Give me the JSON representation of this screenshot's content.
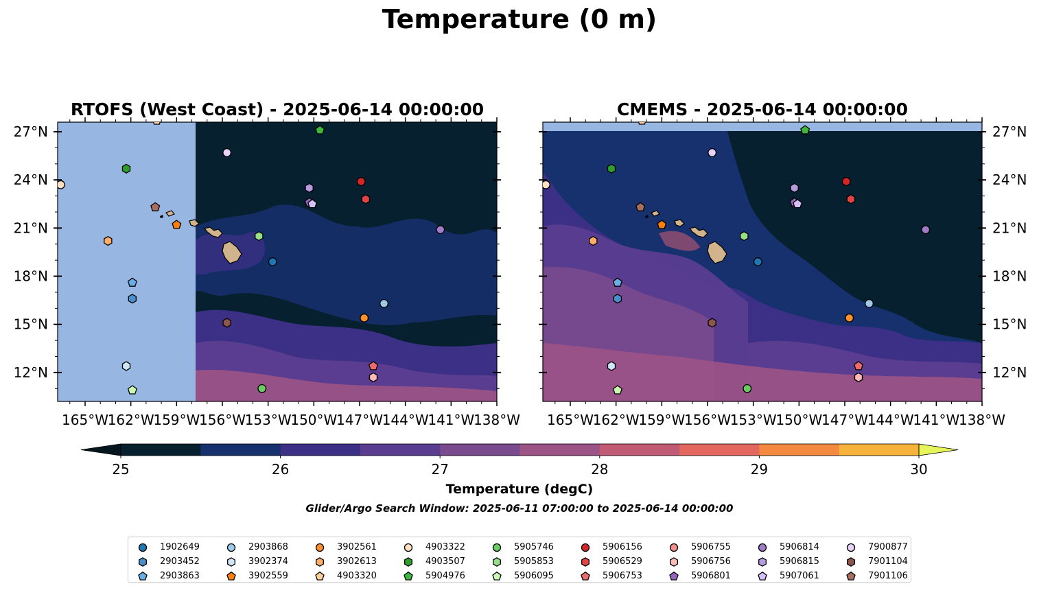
{
  "suptitle": "Temperature (0 m)",
  "panels": [
    {
      "title": "RTOFS (West Coast) - 2025-06-14 00:00:00",
      "model": "RTOFS"
    },
    {
      "title": "CMEMS - 2025-06-14 00:00:00",
      "model": "CMEMS"
    }
  ],
  "colorbar": {
    "label": "Temperature (degC)",
    "ticks": [
      "25",
      "26",
      "27",
      "28",
      "29",
      "30"
    ],
    "range": [
      25,
      30
    ],
    "extend": "both",
    "colors": [
      "#07202f",
      "#17306e",
      "#3b2f86",
      "#5a3d90",
      "#7a4a8e",
      "#9c5386",
      "#c15a73",
      "#e2685f",
      "#f38a3f",
      "#f6b23b",
      "#e6f55a"
    ],
    "under_color": "#06161f"
  },
  "footnote": "Glider/Argo Search Window: 2025-06-11 07:00:00 to 2025-06-14 00:00:00",
  "chart_data": {
    "type": "scatter",
    "subtype": "map with filled-contour temperature field",
    "x_axis": {
      "ticks": [
        "165°W",
        "162°W",
        "159°W",
        "156°W",
        "153°W",
        "150°W",
        "147°W",
        "144°W",
        "141°W",
        "138°W"
      ],
      "range": [
        -166.8,
        -138
      ]
    },
    "y_axis": {
      "ticks": [
        "12°N",
        "15°N",
        "18°N",
        "21°N",
        "24°N",
        "27°N"
      ],
      "range": [
        10.2,
        27.6
      ]
    },
    "land_color": "#d2b48c",
    "no_data_color": "#97b6e1",
    "legend_position": "bottom-center",
    "series": [
      {
        "name": "1902649",
        "marker": "circle",
        "color": "#1f77b4",
        "lon": -152.7,
        "lat": 18.9
      },
      {
        "name": "2903452",
        "marker": "hexagon",
        "color": "#4a8fcc",
        "lon": -161.9,
        "lat": 16.6
      },
      {
        "name": "2903863",
        "marker": "pentagon",
        "color": "#6aaee6",
        "lon": -161.9,
        "lat": 17.6
      },
      {
        "name": "2903868",
        "marker": "circle",
        "color": "#9ecae9",
        "lon": -145.4,
        "lat": 16.3
      },
      {
        "name": "3902374",
        "marker": "hexagon",
        "color": "#cfe6f7",
        "lon": -162.3,
        "lat": 12.4
      },
      {
        "name": "3902559",
        "marker": "pentagon",
        "color": "#ff7f0e",
        "lon": -159.0,
        "lat": 21.2
      },
      {
        "name": "3902561",
        "marker": "circle",
        "color": "#ff902b",
        "lon": -146.7,
        "lat": 15.4
      },
      {
        "name": "3902613",
        "marker": "hexagon",
        "color": "#ffad68",
        "lon": -163.5,
        "lat": 20.2
      },
      {
        "name": "4903320",
        "marker": "pentagon",
        "color": "#ffcf99",
        "lon": -160.3,
        "lat": 27.7
      },
      {
        "name": "4903322",
        "marker": "circle",
        "color": "#ffe0c2",
        "lon": -166.6,
        "lat": 23.7
      },
      {
        "name": "4903507",
        "marker": "hexagon",
        "color": "#2ca02c",
        "lon": -162.3,
        "lat": 24.7
      },
      {
        "name": "5904976",
        "marker": "pentagon",
        "color": "#3cb83c",
        "lon": -149.6,
        "lat": 27.1
      },
      {
        "name": "5905746",
        "marker": "circle",
        "color": "#6ccc64",
        "lon": -153.4,
        "lat": 11.0
      },
      {
        "name": "5905853",
        "marker": "hexagon",
        "color": "#98df8a",
        "lon": -153.6,
        "lat": 20.5
      },
      {
        "name": "5906095",
        "marker": "pentagon",
        "color": "#cdf7b5",
        "lon": -161.9,
        "lat": 10.9
      },
      {
        "name": "5906156",
        "marker": "circle",
        "color": "#d62728",
        "lon": -146.9,
        "lat": 23.9
      },
      {
        "name": "5906529",
        "marker": "hexagon",
        "color": "#e04444",
        "lon": -146.6,
        "lat": 22.8
      },
      {
        "name": "5906753",
        "marker": "pentagon",
        "color": "#ee6b6b",
        "lon": -146.1,
        "lat": 12.4
      },
      {
        "name": "5906755",
        "marker": "circle",
        "color": "#f28e8e",
        "lon": -146.1,
        "lat": 11.7
      },
      {
        "name": "5906756",
        "marker": "hexagon",
        "color": "#ffbaba",
        "lon": -146.1,
        "lat": 11.7
      },
      {
        "name": "5906801",
        "marker": "pentagon",
        "color": "#9467bd",
        "lon": -150.3,
        "lat": 22.6
      },
      {
        "name": "5906814",
        "marker": "circle",
        "color": "#a07cc8",
        "lon": -141.7,
        "lat": 20.9
      },
      {
        "name": "5906815",
        "marker": "hexagon",
        "color": "#b79be0",
        "lon": -150.3,
        "lat": 23.5
      },
      {
        "name": "5907061",
        "marker": "pentagon",
        "color": "#d7bff8",
        "lon": -150.1,
        "lat": 22.5
      },
      {
        "name": "7900877",
        "marker": "circle",
        "color": "#e6d2fb",
        "lon": -155.7,
        "lat": 25.7
      },
      {
        "name": "7901104",
        "marker": "hexagon",
        "color": "#8c564b",
        "lon": -155.7,
        "lat": 15.1
      },
      {
        "name": "7901106",
        "marker": "pentagon",
        "color": "#a86f60",
        "lon": -160.4,
        "lat": 22.3
      }
    ]
  }
}
